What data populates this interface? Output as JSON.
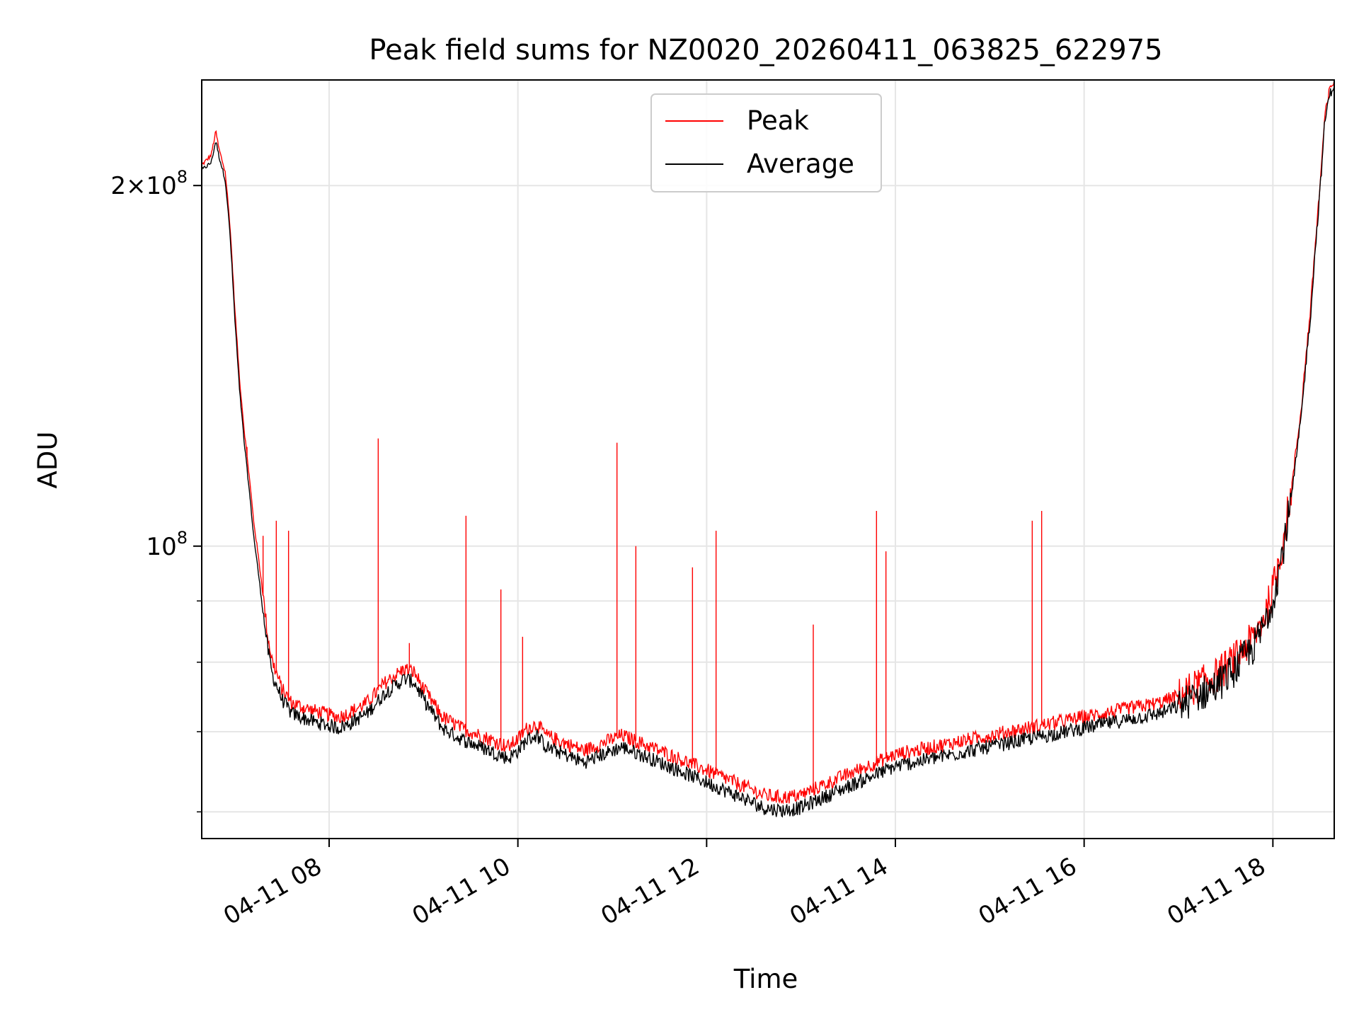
{
  "chart_data": {
    "type": "line",
    "title": "Peak field sums for NZ0020_20260411_063825_622975",
    "xlabel": "Time",
    "ylabel": "ADU",
    "yscale": "log",
    "xlim": [
      6.65,
      18.65
    ],
    "ylim": [
      57000000,
      245000000
    ],
    "x_ticks": [
      {
        "value": 8,
        "label": "04-11 08"
      },
      {
        "value": 10,
        "label": "04-11 10"
      },
      {
        "value": 12,
        "label": "04-11 12"
      },
      {
        "value": 14,
        "label": "04-11 14"
      },
      {
        "value": 16,
        "label": "04-11 16"
      },
      {
        "value": 18,
        "label": "04-11 18"
      }
    ],
    "y_major_ticks": [
      {
        "value": 100000000,
        "mant": "",
        "exp": "8"
      },
      {
        "value": 200000000,
        "mant": "2",
        "exp": "8"
      }
    ],
    "y_minor_ticks": [
      60000000,
      70000000,
      80000000,
      90000000
    ],
    "grid": true,
    "legend": {
      "position": "top-center",
      "entries": [
        "Peak",
        "Average"
      ]
    },
    "series": [
      {
        "name": "Peak",
        "color": "#ff0000",
        "points": [
          [
            6.65,
            208000000
          ],
          [
            6.75,
            212000000
          ],
          [
            6.8,
            222000000
          ],
          [
            6.83,
            215000000
          ],
          [
            6.9,
            205000000
          ],
          [
            6.95,
            185000000
          ],
          [
            7.0,
            158000000
          ],
          [
            7.05,
            138000000
          ],
          [
            7.1,
            125000000
          ],
          [
            7.15,
            115000000
          ],
          [
            7.2,
            105000000
          ],
          [
            7.25,
            98000000
          ],
          [
            7.3,
            91000000
          ],
          [
            7.35,
            84000000
          ],
          [
            7.4,
            80000000
          ],
          [
            7.5,
            76000000
          ],
          [
            7.6,
            74000000
          ],
          [
            7.8,
            73000000
          ],
          [
            8.1,
            72000000
          ],
          [
            8.2,
            72500000
          ],
          [
            8.4,
            74000000
          ],
          [
            8.5,
            75500000
          ],
          [
            8.6,
            77000000
          ],
          [
            8.8,
            79000000
          ],
          [
            8.9,
            78500000
          ],
          [
            9.0,
            76000000
          ],
          [
            9.2,
            72000000
          ],
          [
            9.4,
            70500000
          ],
          [
            9.6,
            69500000
          ],
          [
            9.8,
            68500000
          ],
          [
            9.9,
            68000000
          ],
          [
            10.0,
            69000000
          ],
          [
            10.1,
            70500000
          ],
          [
            10.2,
            71000000
          ],
          [
            10.3,
            69500000
          ],
          [
            10.4,
            69000000
          ],
          [
            10.5,
            68500000
          ],
          [
            10.6,
            68000000
          ],
          [
            10.7,
            67500000
          ],
          [
            10.8,
            68000000
          ],
          [
            10.9,
            68500000
          ],
          [
            11.0,
            69000000
          ],
          [
            11.1,
            69500000
          ],
          [
            11.2,
            69000000
          ],
          [
            11.3,
            68500000
          ],
          [
            11.4,
            68000000
          ],
          [
            11.5,
            67500000
          ],
          [
            11.6,
            67000000
          ],
          [
            11.7,
            66500000
          ],
          [
            11.8,
            66000000
          ],
          [
            11.9,
            65500000
          ],
          [
            12.0,
            65000000
          ],
          [
            12.1,
            64500000
          ],
          [
            12.2,
            64000000
          ],
          [
            12.3,
            63500000
          ],
          [
            12.4,
            63000000
          ],
          [
            12.5,
            62500000
          ],
          [
            12.6,
            62000000
          ],
          [
            12.7,
            61800000
          ],
          [
            12.8,
            61700000
          ],
          [
            12.9,
            61800000
          ],
          [
            13.0,
            62000000
          ],
          [
            13.1,
            62500000
          ],
          [
            13.2,
            63000000
          ],
          [
            13.3,
            63500000
          ],
          [
            13.4,
            64000000
          ],
          [
            13.5,
            64500000
          ],
          [
            13.6,
            65000000
          ],
          [
            13.7,
            65500000
          ],
          [
            13.8,
            66000000
          ],
          [
            13.9,
            66500000
          ],
          [
            14.0,
            67000000
          ],
          [
            14.2,
            67500000
          ],
          [
            14.4,
            68000000
          ],
          [
            14.6,
            68500000
          ],
          [
            14.8,
            69000000
          ],
          [
            15.0,
            69500000
          ],
          [
            15.2,
            70000000
          ],
          [
            15.4,
            70500000
          ],
          [
            15.6,
            71000000
          ],
          [
            15.8,
            71500000
          ],
          [
            16.0,
            72000000
          ],
          [
            16.2,
            72500000
          ],
          [
            16.4,
            73000000
          ],
          [
            16.6,
            73500000
          ],
          [
            16.8,
            74000000
          ],
          [
            17.0,
            75000000
          ],
          [
            17.2,
            76500000
          ],
          [
            17.4,
            78000000
          ],
          [
            17.6,
            80500000
          ],
          [
            17.8,
            84000000
          ],
          [
            17.9,
            87000000
          ],
          [
            18.0,
            92000000
          ],
          [
            18.1,
            100000000
          ],
          [
            18.2,
            112000000
          ],
          [
            18.3,
            130000000
          ],
          [
            18.4,
            158000000
          ],
          [
            18.5,
            200000000
          ],
          [
            18.55,
            228000000
          ],
          [
            18.6,
            240000000
          ],
          [
            18.65,
            245000000
          ]
        ]
      },
      {
        "name": "Average",
        "color": "#000000",
        "points": [
          [
            6.65,
            206000000
          ],
          [
            6.75,
            209000000
          ],
          [
            6.8,
            218000000
          ],
          [
            6.83,
            212000000
          ],
          [
            6.9,
            202000000
          ],
          [
            6.95,
            182000000
          ],
          [
            7.0,
            155000000
          ],
          [
            7.05,
            135000000
          ],
          [
            7.1,
            122000000
          ],
          [
            7.15,
            112000000
          ],
          [
            7.2,
            102000000
          ],
          [
            7.25,
            95000000
          ],
          [
            7.3,
            88000000
          ],
          [
            7.35,
            82000000
          ],
          [
            7.4,
            78000000
          ],
          [
            7.5,
            74500000
          ],
          [
            7.6,
            72500000
          ],
          [
            7.8,
            71500000
          ],
          [
            8.1,
            70500000
          ],
          [
            8.2,
            71000000
          ],
          [
            8.4,
            72500000
          ],
          [
            8.5,
            74000000
          ],
          [
            8.6,
            75500000
          ],
          [
            8.8,
            77500000
          ],
          [
            8.9,
            77000000
          ],
          [
            9.0,
            74500000
          ],
          [
            9.2,
            70500000
          ],
          [
            9.4,
            69000000
          ],
          [
            9.6,
            68000000
          ],
          [
            9.8,
            67000000
          ],
          [
            9.9,
            66500000
          ],
          [
            10.0,
            67500000
          ],
          [
            10.1,
            69000000
          ],
          [
            10.2,
            69500000
          ],
          [
            10.3,
            68000000
          ],
          [
            10.4,
            67500000
          ],
          [
            10.5,
            67000000
          ],
          [
            10.6,
            66500000
          ],
          [
            10.7,
            66000000
          ],
          [
            10.8,
            66500000
          ],
          [
            10.9,
            67000000
          ],
          [
            11.0,
            67500000
          ],
          [
            11.1,
            68000000
          ],
          [
            11.2,
            67500000
          ],
          [
            11.3,
            67000000
          ],
          [
            11.4,
            66500000
          ],
          [
            11.5,
            66000000
          ],
          [
            11.6,
            65500000
          ],
          [
            11.7,
            65000000
          ],
          [
            11.8,
            64500000
          ],
          [
            11.9,
            64000000
          ],
          [
            12.0,
            63500000
          ],
          [
            12.1,
            63000000
          ],
          [
            12.2,
            62500000
          ],
          [
            12.3,
            62000000
          ],
          [
            12.4,
            61500000
          ],
          [
            12.5,
            61000000
          ],
          [
            12.6,
            60500000
          ],
          [
            12.7,
            60300000
          ],
          [
            12.8,
            60200000
          ],
          [
            12.9,
            60300000
          ],
          [
            13.0,
            60500000
          ],
          [
            13.1,
            61000000
          ],
          [
            13.2,
            61500000
          ],
          [
            13.3,
            62000000
          ],
          [
            13.4,
            62500000
          ],
          [
            13.5,
            63000000
          ],
          [
            13.6,
            63500000
          ],
          [
            13.7,
            64000000
          ],
          [
            13.8,
            64500000
          ],
          [
            13.9,
            65000000
          ],
          [
            14.0,
            65500000
          ],
          [
            14.2,
            66000000
          ],
          [
            14.4,
            66500000
          ],
          [
            14.6,
            67000000
          ],
          [
            14.8,
            67500000
          ],
          [
            15.0,
            68000000
          ],
          [
            15.2,
            68500000
          ],
          [
            15.4,
            69000000
          ],
          [
            15.6,
            69500000
          ],
          [
            15.8,
            70000000
          ],
          [
            16.0,
            70500000
          ],
          [
            16.2,
            71000000
          ],
          [
            16.4,
            71500000
          ],
          [
            16.6,
            72000000
          ],
          [
            16.8,
            72500000
          ],
          [
            17.0,
            73500000
          ],
          [
            17.2,
            75000000
          ],
          [
            17.4,
            76500000
          ],
          [
            17.6,
            79000000
          ],
          [
            17.8,
            82500000
          ],
          [
            17.9,
            85500000
          ],
          [
            18.0,
            90500000
          ],
          [
            18.1,
            98500000
          ],
          [
            18.2,
            110000000
          ],
          [
            18.3,
            128000000
          ],
          [
            18.4,
            156000000
          ],
          [
            18.5,
            198000000
          ],
          [
            18.55,
            226000000
          ],
          [
            18.6,
            238000000
          ],
          [
            18.65,
            243000000
          ]
        ]
      }
    ],
    "spikes": [
      [
        7.13,
        121000000
      ],
      [
        7.3,
        102000000
      ],
      [
        7.44,
        105000000
      ],
      [
        7.57,
        103000000
      ],
      [
        8.52,
        123000000
      ],
      [
        8.85,
        83000000
      ],
      [
        9.45,
        106000000
      ],
      [
        9.82,
        92000000
      ],
      [
        10.05,
        84000000
      ],
      [
        11.05,
        122000000
      ],
      [
        11.25,
        100000000
      ],
      [
        11.85,
        96000000
      ],
      [
        12.1,
        103000000
      ],
      [
        13.13,
        86000000
      ],
      [
        13.8,
        107000000
      ],
      [
        13.9,
        99000000
      ],
      [
        15.45,
        105000000
      ],
      [
        15.55,
        107000000
      ]
    ]
  }
}
